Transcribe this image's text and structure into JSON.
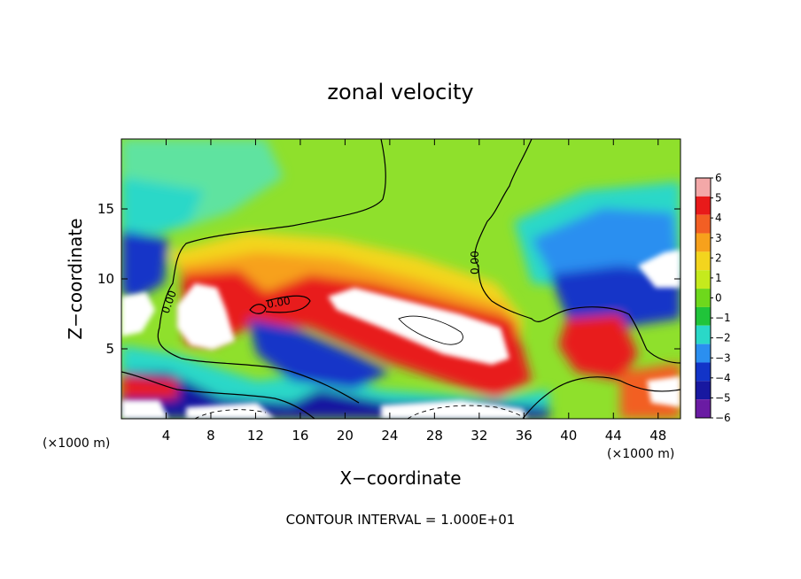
{
  "chart_data": {
    "type": "heatmap",
    "title": "zonal velocity",
    "xlabel": "X−coordinate",
    "ylabel": "Z−coordinate",
    "x_unit_label_left": "(×1000 m)",
    "x_unit_label_right": "(×1000 m)",
    "footer": "CONTOUR INTERVAL =  1.000E+01",
    "xlim": [
      0,
      50
    ],
    "ylim": [
      0,
      20
    ],
    "x_ticks": [
      4,
      8,
      12,
      16,
      20,
      24,
      28,
      32,
      36,
      40,
      44,
      48
    ],
    "y_ticks": [
      5,
      10,
      15
    ],
    "colorbar": {
      "levels": [
        6,
        5,
        4,
        3,
        2,
        1,
        0,
        -1,
        -2,
        -3,
        -4,
        -5,
        -6
      ],
      "colors": [
        "#f3a8a8",
        "#e81a1a",
        "#f25f24",
        "#f7a11c",
        "#f3d51e",
        "#c5ea1d",
        "#6ed81c",
        "#20c43a",
        "#2ad8c8",
        "#2b8ff0",
        "#1234c8",
        "#1818a0",
        "#6a1ba3"
      ]
    },
    "contour_labels": [
      "0.00",
      "0.00",
      "0.00"
    ],
    "regions": [
      {
        "name": "green-background",
        "value": 0.5,
        "color": "#8fe02c"
      },
      {
        "name": "upper-left-cyan",
        "value": -2,
        "color": "#2ad8c8"
      },
      {
        "name": "upper-right-blue",
        "value": -3.5,
        "color": "#2b8ff0"
      },
      {
        "name": "central-red-band",
        "value": 4.5,
        "color": "#e81a1a"
      },
      {
        "name": "low-left-white",
        "value": 6.5,
        "color": "#ffffff"
      },
      {
        "name": "low-center-white",
        "value": 6.5,
        "color": "#ffffff"
      },
      {
        "name": "bottom-blue-band",
        "value": -5,
        "color": "#1818a0"
      }
    ]
  }
}
